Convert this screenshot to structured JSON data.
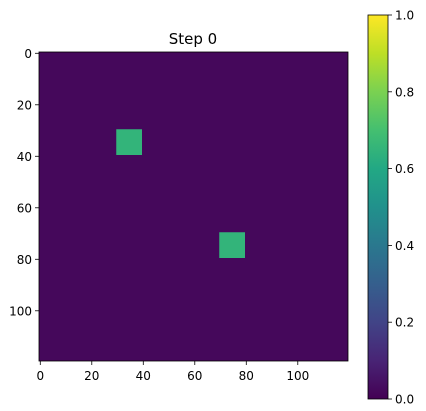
{
  "chart_data": {
    "type": "heatmap",
    "title": "Step 0",
    "xlabel": "",
    "ylabel": "",
    "grid_size": [
      120,
      120
    ],
    "xlim": [
      0,
      120
    ],
    "ylim": [
      120,
      0
    ],
    "x_ticks": [
      0,
      20,
      40,
      60,
      80,
      100
    ],
    "x_tick_labels": [
      "0",
      "20",
      "40",
      "60",
      "80",
      "100"
    ],
    "y_ticks": [
      0,
      20,
      40,
      60,
      80,
      100
    ],
    "y_tick_labels": [
      "0",
      "20",
      "40",
      "60",
      "80",
      "100"
    ],
    "background_value": 0.02,
    "patches": [
      {
        "x_range": [
          30,
          40
        ],
        "y_range": [
          30,
          40
        ],
        "value": 0.65
      },
      {
        "x_range": [
          70,
          80
        ],
        "y_range": [
          70,
          80
        ],
        "value": 0.65
      }
    ],
    "colormap": "viridis",
    "colorbar": {
      "range": [
        0,
        1
      ],
      "ticks": [
        0.0,
        0.2,
        0.4,
        0.6,
        0.8,
        1.0
      ],
      "tick_labels": [
        "0.0",
        "0.2",
        "0.4",
        "0.6",
        "0.8",
        "1.0"
      ]
    },
    "grid": false,
    "legend": "none"
  }
}
